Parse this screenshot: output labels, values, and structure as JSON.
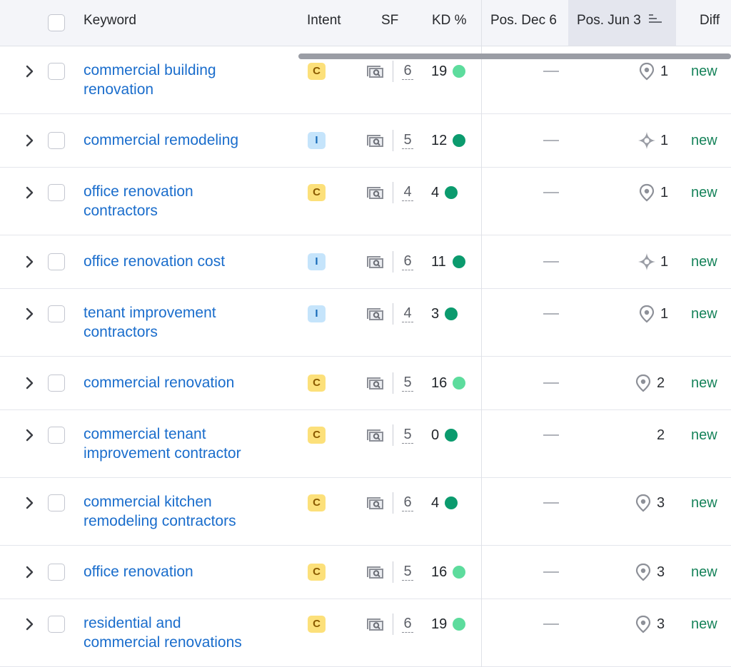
{
  "header": {
    "keyword": "Keyword",
    "intent": "Intent",
    "sf": "SF",
    "kd": "KD %",
    "pos_prev": "Pos. Dec 6",
    "pos_curr": "Pos. Jun 3",
    "diff": "Diff"
  },
  "colors": {
    "kd_light": "#5ddc9d",
    "kd_dark": "#0b9b6e",
    "link": "#1a6dcc",
    "new": "#16835a"
  },
  "rows": [
    {
      "kw1": "commercial building",
      "kw2": "renovation",
      "intent": "C",
      "sf": "6",
      "kd": "19",
      "kd_level": "light",
      "prev": "—",
      "serp": "local-pack-icon",
      "pos": "1",
      "diff": "new"
    },
    {
      "kw1": "commercial remodeling",
      "kw2": "",
      "intent": "I",
      "sf": "5",
      "kd": "12",
      "kd_level": "dark",
      "prev": "—",
      "serp": "ai-overview-icon",
      "pos": "1",
      "diff": "new"
    },
    {
      "kw1": "office renovation",
      "kw2": "contractors",
      "intent": "C",
      "sf": "4",
      "kd": "4",
      "kd_level": "dark",
      "prev": "—",
      "serp": "local-pack-icon",
      "pos": "1",
      "diff": "new"
    },
    {
      "kw1": "office renovation cost",
      "kw2": "",
      "intent": "I",
      "sf": "6",
      "kd": "11",
      "kd_level": "dark",
      "prev": "—",
      "serp": "ai-overview-icon",
      "pos": "1",
      "diff": "new"
    },
    {
      "kw1": "tenant improvement",
      "kw2": "contractors",
      "intent": "I",
      "sf": "4",
      "kd": "3",
      "kd_level": "dark",
      "prev": "—",
      "serp": "local-pack-icon",
      "pos": "1",
      "diff": "new"
    },
    {
      "kw1": "commercial renovation",
      "kw2": "",
      "intent": "C",
      "sf": "5",
      "kd": "16",
      "kd_level": "light",
      "prev": "—",
      "serp": "local-pack-icon",
      "pos": "2",
      "diff": "new"
    },
    {
      "kw1": "commercial tenant",
      "kw2": "improvement contractor",
      "intent": "C",
      "sf": "5",
      "kd": "0",
      "kd_level": "dark",
      "prev": "—",
      "serp": "",
      "pos": "2",
      "diff": "new"
    },
    {
      "kw1": "commercial kitchen",
      "kw2": "remodeling contractors",
      "intent": "C",
      "sf": "6",
      "kd": "4",
      "kd_level": "dark",
      "prev": "—",
      "serp": "local-pack-icon",
      "pos": "3",
      "diff": "new"
    },
    {
      "kw1": "office renovation",
      "kw2": "",
      "intent": "C",
      "sf": "5",
      "kd": "16",
      "kd_level": "light",
      "prev": "—",
      "serp": "local-pack-icon",
      "pos": "3",
      "diff": "new"
    },
    {
      "kw1": "residential and",
      "kw2": "commercial renovations",
      "intent": "C",
      "sf": "6",
      "kd": "19",
      "kd_level": "light",
      "prev": "—",
      "serp": "local-pack-icon",
      "pos": "3",
      "diff": "new"
    }
  ]
}
